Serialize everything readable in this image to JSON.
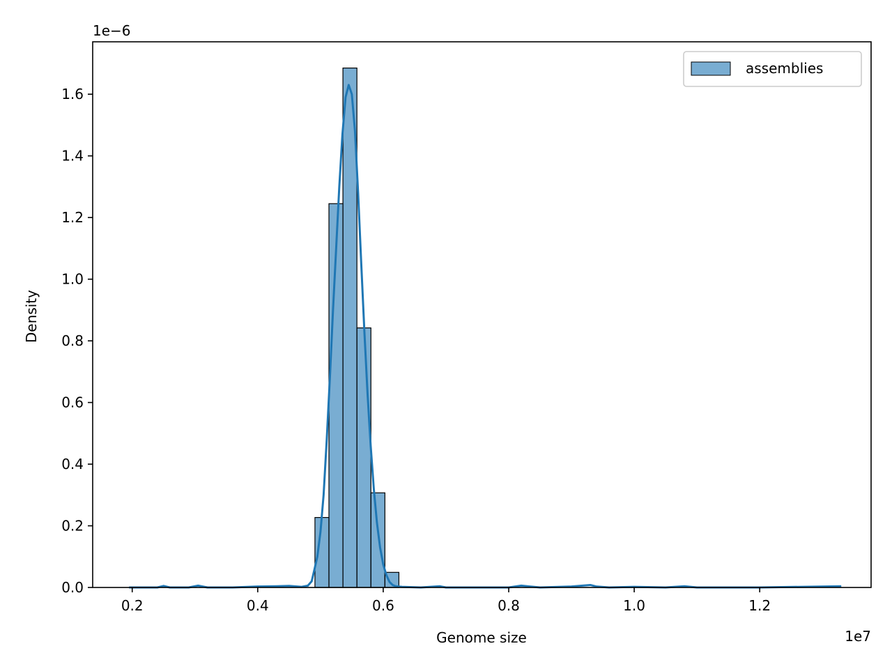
{
  "chart_data": {
    "type": "bar",
    "xlabel": "Genome size",
    "ylabel": "Density",
    "x_offset_text": "1e7",
    "y_offset_text": "1e−6",
    "xlim": [
      0.137,
      1.3775
    ],
    "ylim": [
      0,
      1.77
    ],
    "xticks": [
      0.2,
      0.4,
      0.6,
      0.8,
      1.0,
      1.2
    ],
    "xtick_labels": [
      "0.2",
      "0.4",
      "0.6",
      "0.8",
      "1.0",
      "1.2"
    ],
    "yticks": [
      0.0,
      0.2,
      0.4,
      0.6,
      0.8,
      1.0,
      1.2,
      1.4,
      1.6
    ],
    "ytick_labels": [
      "0.0",
      "0.2",
      "0.4",
      "0.6",
      "0.8",
      "1.0",
      "1.2",
      "1.4",
      "1.6"
    ],
    "bin_edges": [
      0.4912,
      0.5135,
      0.5358,
      0.5581,
      0.5804,
      0.6027,
      0.625
    ],
    "densities": [
      0.227,
      1.245,
      1.685,
      0.842,
      0.307,
      0.049
    ],
    "series": [
      {
        "name": "assemblies",
        "kind": "histogram",
        "color": "#1f77b4"
      },
      {
        "kind": "kde",
        "color": "#1f77b4",
        "x": [
          0.195,
          0.24,
          0.25,
          0.26,
          0.29,
          0.305,
          0.32,
          0.36,
          0.4,
          0.43,
          0.45,
          0.47,
          0.48,
          0.486,
          0.49,
          0.495,
          0.5,
          0.505,
          0.51,
          0.515,
          0.52,
          0.525,
          0.53,
          0.535,
          0.54,
          0.545,
          0.55,
          0.555,
          0.56,
          0.565,
          0.57,
          0.575,
          0.58,
          0.585,
          0.59,
          0.595,
          0.6,
          0.605,
          0.61,
          0.615,
          0.62,
          0.63,
          0.66,
          0.69,
          0.7,
          0.75,
          0.8,
          0.82,
          0.85,
          0.9,
          0.93,
          0.94,
          0.96,
          1.0,
          1.05,
          1.08,
          1.1,
          1.2,
          1.33
        ],
        "y": [
          0.0,
          0.0,
          0.005,
          0.0,
          0.0,
          0.006,
          0.0,
          0.0,
          0.003,
          0.004,
          0.005,
          0.002,
          0.006,
          0.02,
          0.055,
          0.1,
          0.18,
          0.3,
          0.48,
          0.68,
          0.9,
          1.1,
          1.3,
          1.47,
          1.59,
          1.63,
          1.6,
          1.48,
          1.28,
          1.05,
          0.83,
          0.63,
          0.46,
          0.32,
          0.21,
          0.13,
          0.075,
          0.04,
          0.018,
          0.008,
          0.004,
          0.002,
          0.0,
          0.004,
          0.0,
          0.0,
          0.0,
          0.006,
          0.0,
          0.003,
          0.008,
          0.003,
          0.0,
          0.002,
          0.0,
          0.004,
          0.0,
          0.0,
          0.004
        ]
      }
    ],
    "legend": {
      "position": "upper-right"
    },
    "grid": false
  }
}
